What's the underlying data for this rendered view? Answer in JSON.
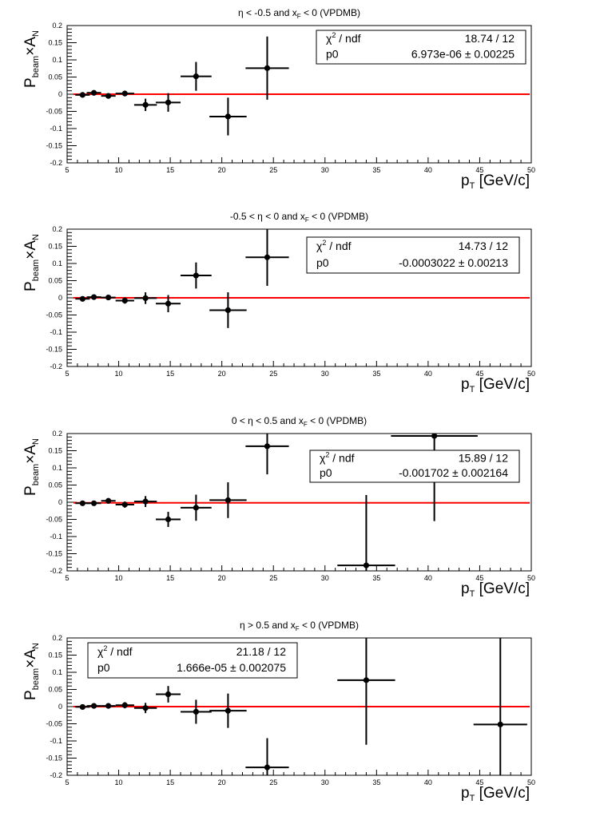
{
  "chart_data": [
    {
      "type": "scatter",
      "title": "η < -0.5 and x_F < 0 (VPDMB)",
      "title_parts": {
        "pre": "η < -0.5 and x",
        "sub": "F",
        "post": " < 0 (VPDMB)"
      },
      "xlabel": "p_T [GeV/c]",
      "ylabel": "P_beam×A_N",
      "xlim": [
        5,
        50
      ],
      "ylim": [
        -0.2,
        0.2
      ],
      "x_ticks": [
        5,
        10,
        15,
        20,
        25,
        30,
        35,
        40,
        45,
        50
      ],
      "y_ticks": [
        "0.2",
        "0.15",
        "0.1",
        "0.05",
        "0",
        "-0.05",
        "-0.1",
        "-0.15",
        "-0.2"
      ],
      "fit_line": {
        "y": 0,
        "color": "#ff0000"
      },
      "stats": {
        "chi2_label": "χ² / ndf",
        "chi2_value": "18.74 / 12",
        "p0_label": "p0",
        "p0_value": "6.973e-06 ± 0.00225",
        "position": "top-right"
      },
      "points": [
        {
          "x": 6.5,
          "xerr": 0.7,
          "y": -0.002,
          "yerr": 0.005
        },
        {
          "x": 7.6,
          "xerr": 0.7,
          "y": 0.004,
          "yerr": 0.005
        },
        {
          "x": 9.0,
          "xerr": 0.7,
          "y": -0.005,
          "yerr": 0.006
        },
        {
          "x": 10.6,
          "xerr": 0.9,
          "y": 0.002,
          "yerr": 0.008
        },
        {
          "x": 12.6,
          "xerr": 1.1,
          "y": -0.031,
          "yerr": 0.018
        },
        {
          "x": 14.8,
          "xerr": 1.2,
          "y": -0.024,
          "yerr": 0.027
        },
        {
          "x": 17.5,
          "xerr": 1.5,
          "y": 0.052,
          "yerr": 0.042
        },
        {
          "x": 20.6,
          "xerr": 1.8,
          "y": -0.065,
          "yerr": 0.055
        },
        {
          "x": 24.4,
          "xerr": 2.1,
          "y": 0.076,
          "yerr": 0.092
        }
      ]
    },
    {
      "type": "scatter",
      "title": "-0.5 < η < 0 and x_F < 0 (VPDMB)",
      "title_parts": {
        "pre": "-0.5 < η < 0 and x",
        "sub": "F",
        "post": " < 0 (VPDMB)"
      },
      "xlabel": "p_T [GeV/c]",
      "ylabel": "P_beam×A_N",
      "xlim": [
        5,
        50
      ],
      "ylim": [
        -0.2,
        0.2
      ],
      "x_ticks": [
        5,
        10,
        15,
        20,
        25,
        30,
        35,
        40,
        45,
        50
      ],
      "y_ticks": [
        "0.2",
        "0.15",
        "0.1",
        "0.05",
        "0",
        "-0.05",
        "-0.1",
        "-0.15",
        "-0.2"
      ],
      "fit_line": {
        "y": 0,
        "color": "#ff0000"
      },
      "stats": {
        "chi2_label": "χ² / ndf",
        "chi2_value": "14.73 / 12",
        "p0_label": "p0",
        "p0_value": "-0.0003022 ± 0.00213",
        "position": "top-right"
      },
      "points": [
        {
          "x": 6.5,
          "xerr": 0.7,
          "y": -0.003,
          "yerr": 0.005
        },
        {
          "x": 7.6,
          "xerr": 0.7,
          "y": 0.002,
          "yerr": 0.005
        },
        {
          "x": 9.0,
          "xerr": 0.7,
          "y": 0.001,
          "yerr": 0.006
        },
        {
          "x": 10.6,
          "xerr": 0.9,
          "y": -0.008,
          "yerr": 0.009
        },
        {
          "x": 12.6,
          "xerr": 1.1,
          "y": -0.001,
          "yerr": 0.017
        },
        {
          "x": 14.8,
          "xerr": 1.2,
          "y": -0.017,
          "yerr": 0.025
        },
        {
          "x": 17.5,
          "xerr": 1.5,
          "y": 0.065,
          "yerr": 0.038
        },
        {
          "x": 20.6,
          "xerr": 1.8,
          "y": -0.036,
          "yerr": 0.052
        },
        {
          "x": 24.4,
          "xerr": 2.1,
          "y": 0.118,
          "yerr": 0.083
        }
      ]
    },
    {
      "type": "scatter",
      "title": "0 < η < 0.5 and x_F < 0 (VPDMB)",
      "title_parts": {
        "pre": "0 < η < 0.5 and x",
        "sub": "F",
        "post": " < 0 (VPDMB)"
      },
      "xlabel": "p_T [GeV/c]",
      "ylabel": "P_beam×A_N",
      "xlim": [
        5,
        50
      ],
      "ylim": [
        -0.2,
        0.2
      ],
      "x_ticks": [
        5,
        10,
        15,
        20,
        25,
        30,
        35,
        40,
        45,
        50
      ],
      "y_ticks": [
        "0.2",
        "0.15",
        "0.1",
        "0.05",
        "0",
        "-0.05",
        "-0.1",
        "-0.15",
        "-0.2"
      ],
      "fit_line": {
        "y": -0.001702,
        "color": "#ff0000"
      },
      "stats": {
        "chi2_label": "χ² / ndf",
        "chi2_value": "15.89 / 12",
        "p0_label": "p0",
        "p0_value": "-0.001702 ± 0.002164",
        "position": "top-right"
      },
      "points": [
        {
          "x": 6.5,
          "xerr": 0.7,
          "y": -0.003,
          "yerr": 0.005
        },
        {
          "x": 7.6,
          "xerr": 0.7,
          "y": -0.003,
          "yerr": 0.005
        },
        {
          "x": 9.0,
          "xerr": 0.7,
          "y": 0.004,
          "yerr": 0.006
        },
        {
          "x": 10.6,
          "xerr": 0.9,
          "y": -0.007,
          "yerr": 0.009
        },
        {
          "x": 12.6,
          "xerr": 1.1,
          "y": 0.002,
          "yerr": 0.016
        },
        {
          "x": 14.8,
          "xerr": 1.2,
          "y": -0.05,
          "yerr": 0.022
        },
        {
          "x": 17.5,
          "xerr": 1.5,
          "y": -0.016,
          "yerr": 0.038
        },
        {
          "x": 20.6,
          "xerr": 1.8,
          "y": 0.006,
          "yerr": 0.052
        },
        {
          "x": 24.4,
          "xerr": 2.1,
          "y": 0.163,
          "yerr": 0.082
        },
        {
          "x": 34.0,
          "xerr": 2.8,
          "y": -0.184,
          "yerr": 0.205
        },
        {
          "x": 40.6,
          "xerr": 4.2,
          "y": 0.193,
          "yerr": 0.248
        }
      ]
    },
    {
      "type": "scatter",
      "title": "η > 0.5 and x_F < 0 (VPDMB)",
      "title_parts": {
        "pre": "η > 0.5 and x",
        "sub": "F",
        "post": " < 0 (VPDMB)"
      },
      "xlabel": "p_T [GeV/c]",
      "ylabel": "P_beam×A_N",
      "xlim": [
        5,
        50
      ],
      "ylim": [
        -0.2,
        0.2
      ],
      "x_ticks": [
        5,
        10,
        15,
        20,
        25,
        30,
        35,
        40,
        45,
        50
      ],
      "y_ticks": [
        "0.2",
        "0.15",
        "0.1",
        "0.05",
        "0",
        "-0.05",
        "-0.1",
        "-0.15",
        "-0.2"
      ],
      "fit_line": {
        "y": 0,
        "color": "#ff0000"
      },
      "stats": {
        "chi2_label": "χ² / ndf",
        "chi2_value": "21.18 / 12",
        "p0_label": "p0",
        "p0_value": "1.666e-05 ± 0.002075",
        "position": "top-left"
      },
      "points": [
        {
          "x": 6.5,
          "xerr": 0.7,
          "y": -0.001,
          "yerr": 0.005
        },
        {
          "x": 7.6,
          "xerr": 0.7,
          "y": 0.002,
          "yerr": 0.005
        },
        {
          "x": 9.0,
          "xerr": 0.7,
          "y": 0.002,
          "yerr": 0.006
        },
        {
          "x": 10.6,
          "xerr": 0.9,
          "y": 0.004,
          "yerr": 0.009
        },
        {
          "x": 12.6,
          "xerr": 1.1,
          "y": -0.004,
          "yerr": 0.015
        },
        {
          "x": 14.8,
          "xerr": 1.2,
          "y": 0.036,
          "yerr": 0.024
        },
        {
          "x": 17.5,
          "xerr": 1.5,
          "y": -0.015,
          "yerr": 0.035
        },
        {
          "x": 20.6,
          "xerr": 1.8,
          "y": -0.012,
          "yerr": 0.05
        },
        {
          "x": 24.4,
          "xerr": 2.1,
          "y": -0.177,
          "yerr": 0.085
        },
        {
          "x": 34.0,
          "xerr": 2.8,
          "y": 0.077,
          "yerr": 0.188
        },
        {
          "x": 47.0,
          "xerr": 2.6,
          "y": -0.052,
          "yerr": 0.26
        }
      ]
    }
  ]
}
